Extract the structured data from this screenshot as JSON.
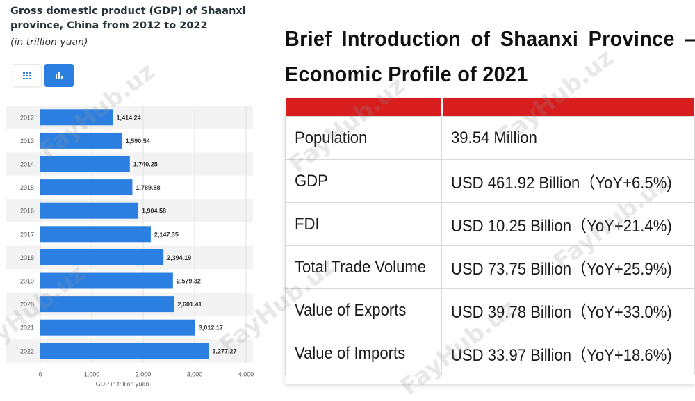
{
  "left_chart": {
    "title": "Gross domestic product (GDP) of Shaanxi province, China from 2012 to 2022",
    "subtitle": "(in trillion yuan)",
    "table_view_icon": "grid-icon",
    "chart_view_icon": "bar-chart-icon"
  },
  "chart_data": {
    "type": "bar",
    "orientation": "horizontal",
    "categories": [
      "2012",
      "2013",
      "2014",
      "2015",
      "2016",
      "2017",
      "2018",
      "2019",
      "2020",
      "2021",
      "2022"
    ],
    "values": [
      1414.24,
      1590.54,
      1740.25,
      1789.88,
      1904.58,
      2147.35,
      2394.19,
      2579.32,
      2601.41,
      3012.17,
      3277.27
    ],
    "value_labels": [
      "1,414.24",
      "1,590.54",
      "1,740.25",
      "1,789.88",
      "1,904.58",
      "2,147.35",
      "2,394.19",
      "2,579.32",
      "2,601.41",
      "3,012.17",
      "3,277.27"
    ],
    "xlabel": "GDP in trillion yuan",
    "ylabel": "",
    "xlim": [
      0,
      4000
    ],
    "xticks": [
      0,
      1000,
      2000,
      3000,
      4000
    ],
    "xtick_labels": [
      "0",
      "1,000",
      "2,000",
      "3,000",
      "4,000"
    ],
    "grid": true,
    "bar_color": "#2b7fe0"
  },
  "info": {
    "heading_line1_words": [
      "Brief",
      "Introduction",
      "of",
      "Shaanxi",
      "Province",
      "–"
    ],
    "heading_line2": "Economic Profile of 2021",
    "header_color": "#d71d1d",
    "rows": [
      {
        "label": "Population",
        "value": "39.54 Million"
      },
      {
        "label": "GDP",
        "value": "USD 461.92 Billion（YoY+6.5%)"
      },
      {
        "label": "FDI",
        "value": "USD 10.25 Billion（YoY+21.4%)"
      },
      {
        "label": "Total Trade Volume",
        "value": "USD 73.75 Billion（YoY+25.9%)"
      },
      {
        "label": "Value of Exports",
        "value": "USD 39.78 Billion（YoY+33.0%)"
      },
      {
        "label": "Value of Imports",
        "value": "USD 33.97 Billion（YoY+18.6%)"
      }
    ]
  },
  "watermark": "FayHub.uz"
}
